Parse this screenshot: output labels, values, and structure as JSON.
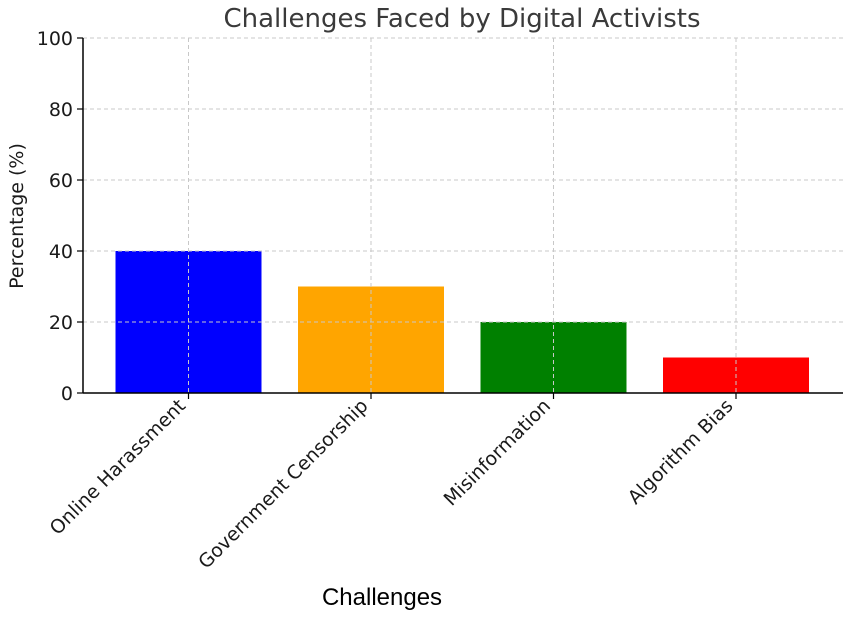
{
  "chart_data": {
    "type": "bar",
    "title": "Challenges Faced by Digital Activists",
    "xlabel": "Challenges",
    "ylabel": "Percentage (%)",
    "categories": [
      "Online Harassment",
      "Government Censorship",
      "Misinformation",
      "Algorithm Bias"
    ],
    "values": [
      40,
      30,
      20,
      10
    ],
    "colors": [
      "#0000ff",
      "#ffa500",
      "#008000",
      "#ff0000"
    ],
    "ylim": [
      0,
      100
    ],
    "yticks": [
      0,
      20,
      40,
      60,
      80,
      100
    ],
    "grid": true
  }
}
